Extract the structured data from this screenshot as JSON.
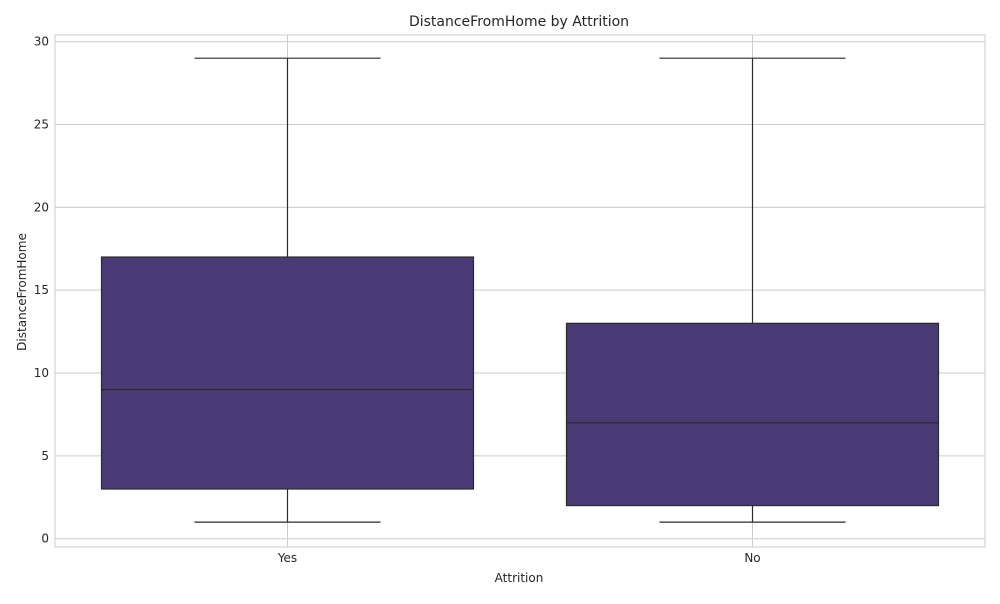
{
  "chart_data": {
    "type": "boxplot",
    "title": "DistanceFromHome by Attrition",
    "xlabel": "Attrition",
    "ylabel": "DistanceFromHome",
    "ylim": [
      -0.5,
      30.4
    ],
    "yticks": [
      0,
      5,
      10,
      15,
      20,
      25,
      30
    ],
    "grid": true,
    "categories": [
      "Yes",
      "No"
    ],
    "boxes": [
      {
        "category": "Yes",
        "whisker_low": 1,
        "q1": 3,
        "median": 9,
        "q3": 17,
        "whisker_high": 29
      },
      {
        "category": "No",
        "whisker_low": 1,
        "q1": 2,
        "median": 7,
        "q3": 13,
        "whisker_high": 29
      }
    ],
    "colors": {
      "box_fill": "#4a3a75",
      "line": "#2b2b2b",
      "grid": "#cccccc",
      "axes": "#cccccc"
    }
  }
}
